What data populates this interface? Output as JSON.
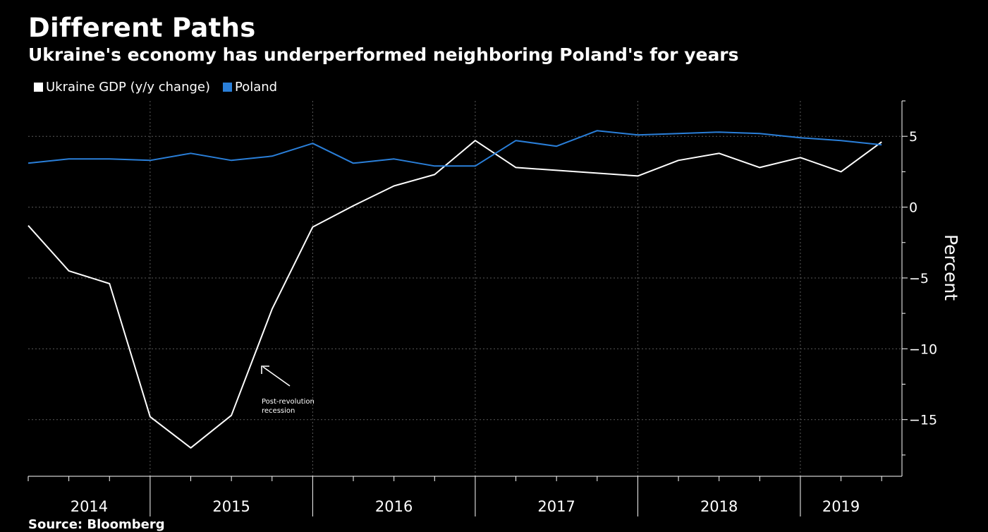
{
  "title": "Different Paths",
  "subtitle": "Ukraine's economy has underperformed neighboring Poland's for years",
  "source_label": "Source: Bloomberg",
  "chart_data": {
    "type": "line",
    "ylabel": "Percent",
    "ylim": [
      -19,
      7.5
    ],
    "yticks": [
      5,
      0,
      -5,
      -10,
      -15
    ],
    "ytick_labels": [
      "5",
      "0",
      "-5",
      "-10",
      "-15"
    ],
    "xlim": [
      0,
      21.5
    ],
    "year_boundaries": [
      3,
      7,
      11,
      15,
      19
    ],
    "year_labels": [
      {
        "label": "2014",
        "x": 1.5
      },
      {
        "label": "2015",
        "x": 5
      },
      {
        "label": "2016",
        "x": 9
      },
      {
        "label": "2017",
        "x": 13
      },
      {
        "label": "2018",
        "x": 17
      },
      {
        "label": "2019",
        "x": 20
      }
    ],
    "legend_position": "top-left",
    "series": [
      {
        "name": "Ukraine GDP (y/y change)",
        "color": "#ffffff",
        "x": [
          0,
          1,
          2,
          3,
          4,
          5,
          6,
          7,
          8,
          9,
          10,
          11,
          12,
          13,
          14,
          15,
          16,
          17,
          18,
          19,
          20,
          21
        ],
        "values": [
          -1.3,
          -4.5,
          -5.4,
          -14.8,
          -17.0,
          -14.7,
          -7.2,
          -1.4,
          0.1,
          1.5,
          2.3,
          4.7,
          2.8,
          2.6,
          2.4,
          2.2,
          3.3,
          3.8,
          2.8,
          3.5,
          2.5,
          4.6
        ]
      },
      {
        "name": "Poland",
        "color": "#2a7fd9",
        "x": [
          0,
          1,
          2,
          3,
          4,
          5,
          6,
          7,
          8,
          9,
          10,
          11,
          12,
          13,
          14,
          15,
          16,
          17,
          18,
          19,
          20,
          21
        ],
        "values": [
          3.1,
          3.4,
          3.4,
          3.3,
          3.8,
          3.3,
          3.6,
          4.5,
          3.1,
          3.4,
          2.9,
          2.9,
          4.7,
          4.3,
          5.4,
          5.1,
          5.2,
          5.3,
          5.2,
          4.9,
          4.7,
          4.4
        ]
      }
    ],
    "annotations": [
      {
        "text_lines": [
          "Post-revolution",
          "recession"
        ],
        "arrow": true
      }
    ]
  }
}
